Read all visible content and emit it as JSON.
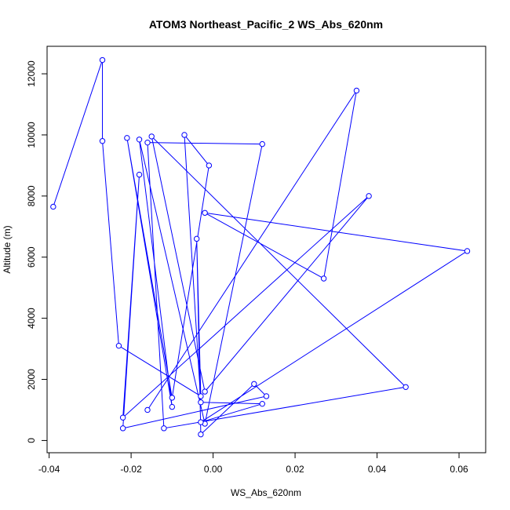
{
  "chart_data": {
    "type": "line",
    "title": "ATOM3 Northeast_Pacific_2 WS_Abs_620nm",
    "xlabel": "WS_Abs_620nm",
    "ylabel": "Altitude (m)",
    "xlim": [
      -0.0405,
      0.0665
    ],
    "ylim": [
      -400,
      12900
    ],
    "x_ticks": [
      -0.04,
      -0.02,
      0.0,
      0.02,
      0.04,
      0.06
    ],
    "x_tick_labels": [
      "-0.04",
      "-0.02",
      "0.00",
      "0.02",
      "0.04",
      "0.06"
    ],
    "y_ticks": [
      0,
      2000,
      4000,
      6000,
      8000,
      10000,
      12000
    ],
    "y_tick_labels": [
      "0",
      "2000",
      "4000",
      "6000",
      "8000",
      "10000",
      "12000"
    ],
    "grid": false,
    "legend": "none",
    "series_color": "#0000ff",
    "series": [
      {
        "x": [
          -0.039,
          -0.027,
          -0.027,
          -0.023,
          -0.003,
          -0.004,
          -0.003,
          0.01,
          0.013,
          -0.022,
          -0.018,
          -0.022,
          0.038,
          -0.002,
          -0.015,
          0.047,
          -0.012,
          -0.016,
          0.012,
          -0.002,
          -0.018,
          -0.01,
          -0.021,
          -0.01,
          -0.001,
          -0.007,
          -0.003,
          0.012,
          -0.003,
          0.062,
          -0.002,
          0.027,
          0.035,
          -0.016
        ],
        "y": [
          7650,
          12450,
          9800,
          3100,
          1450,
          6600,
          200,
          1850,
          1450,
          400,
          8700,
          750,
          8000,
          1600,
          9950,
          1750,
          400,
          9750,
          9700,
          550,
          9850,
          1100,
          9900,
          1400,
          9000,
          10000,
          1250,
          1200,
          600,
          6200,
          7450,
          5300,
          11450,
          1000
        ]
      }
    ]
  }
}
